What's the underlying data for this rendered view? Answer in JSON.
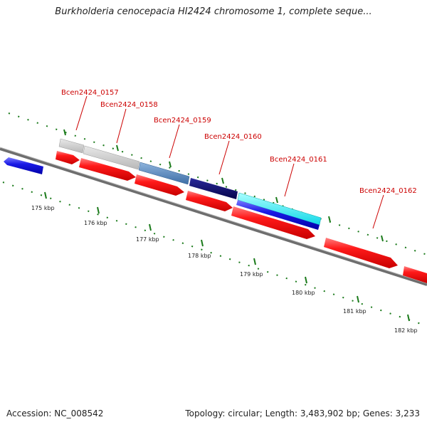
{
  "title": "Burkholderia cenocepacia HI2424 chromosome 1, complete seque...",
  "footer": {
    "accession_label": "Accession:",
    "accession": "NC_008542",
    "topology_label": "Topology:",
    "topology": "circular",
    "length_label": "Length:",
    "length": "3,483,902 bp",
    "genes_label": "Genes:",
    "genes": "3,233"
  },
  "colors": {
    "forward_gene": "#e8001b",
    "reverse_gene": "#1515dd",
    "backbone": "#7a7a7a",
    "tick": "#1a7a1a",
    "label_line": "#cc0000"
  },
  "ticks": [
    "175 kbp",
    "176 kbp",
    "177 kbp",
    "178 kbp",
    "179 kbp",
    "180 kbp",
    "181 kbp",
    "182 kbp"
  ],
  "gene_labels": [
    "Bcen2424_0157",
    "Bcen2424_0158",
    "Bcen2424_0159",
    "Bcen2424_0160",
    "Bcen2424_0161",
    "Bcen2424_0162"
  ]
}
